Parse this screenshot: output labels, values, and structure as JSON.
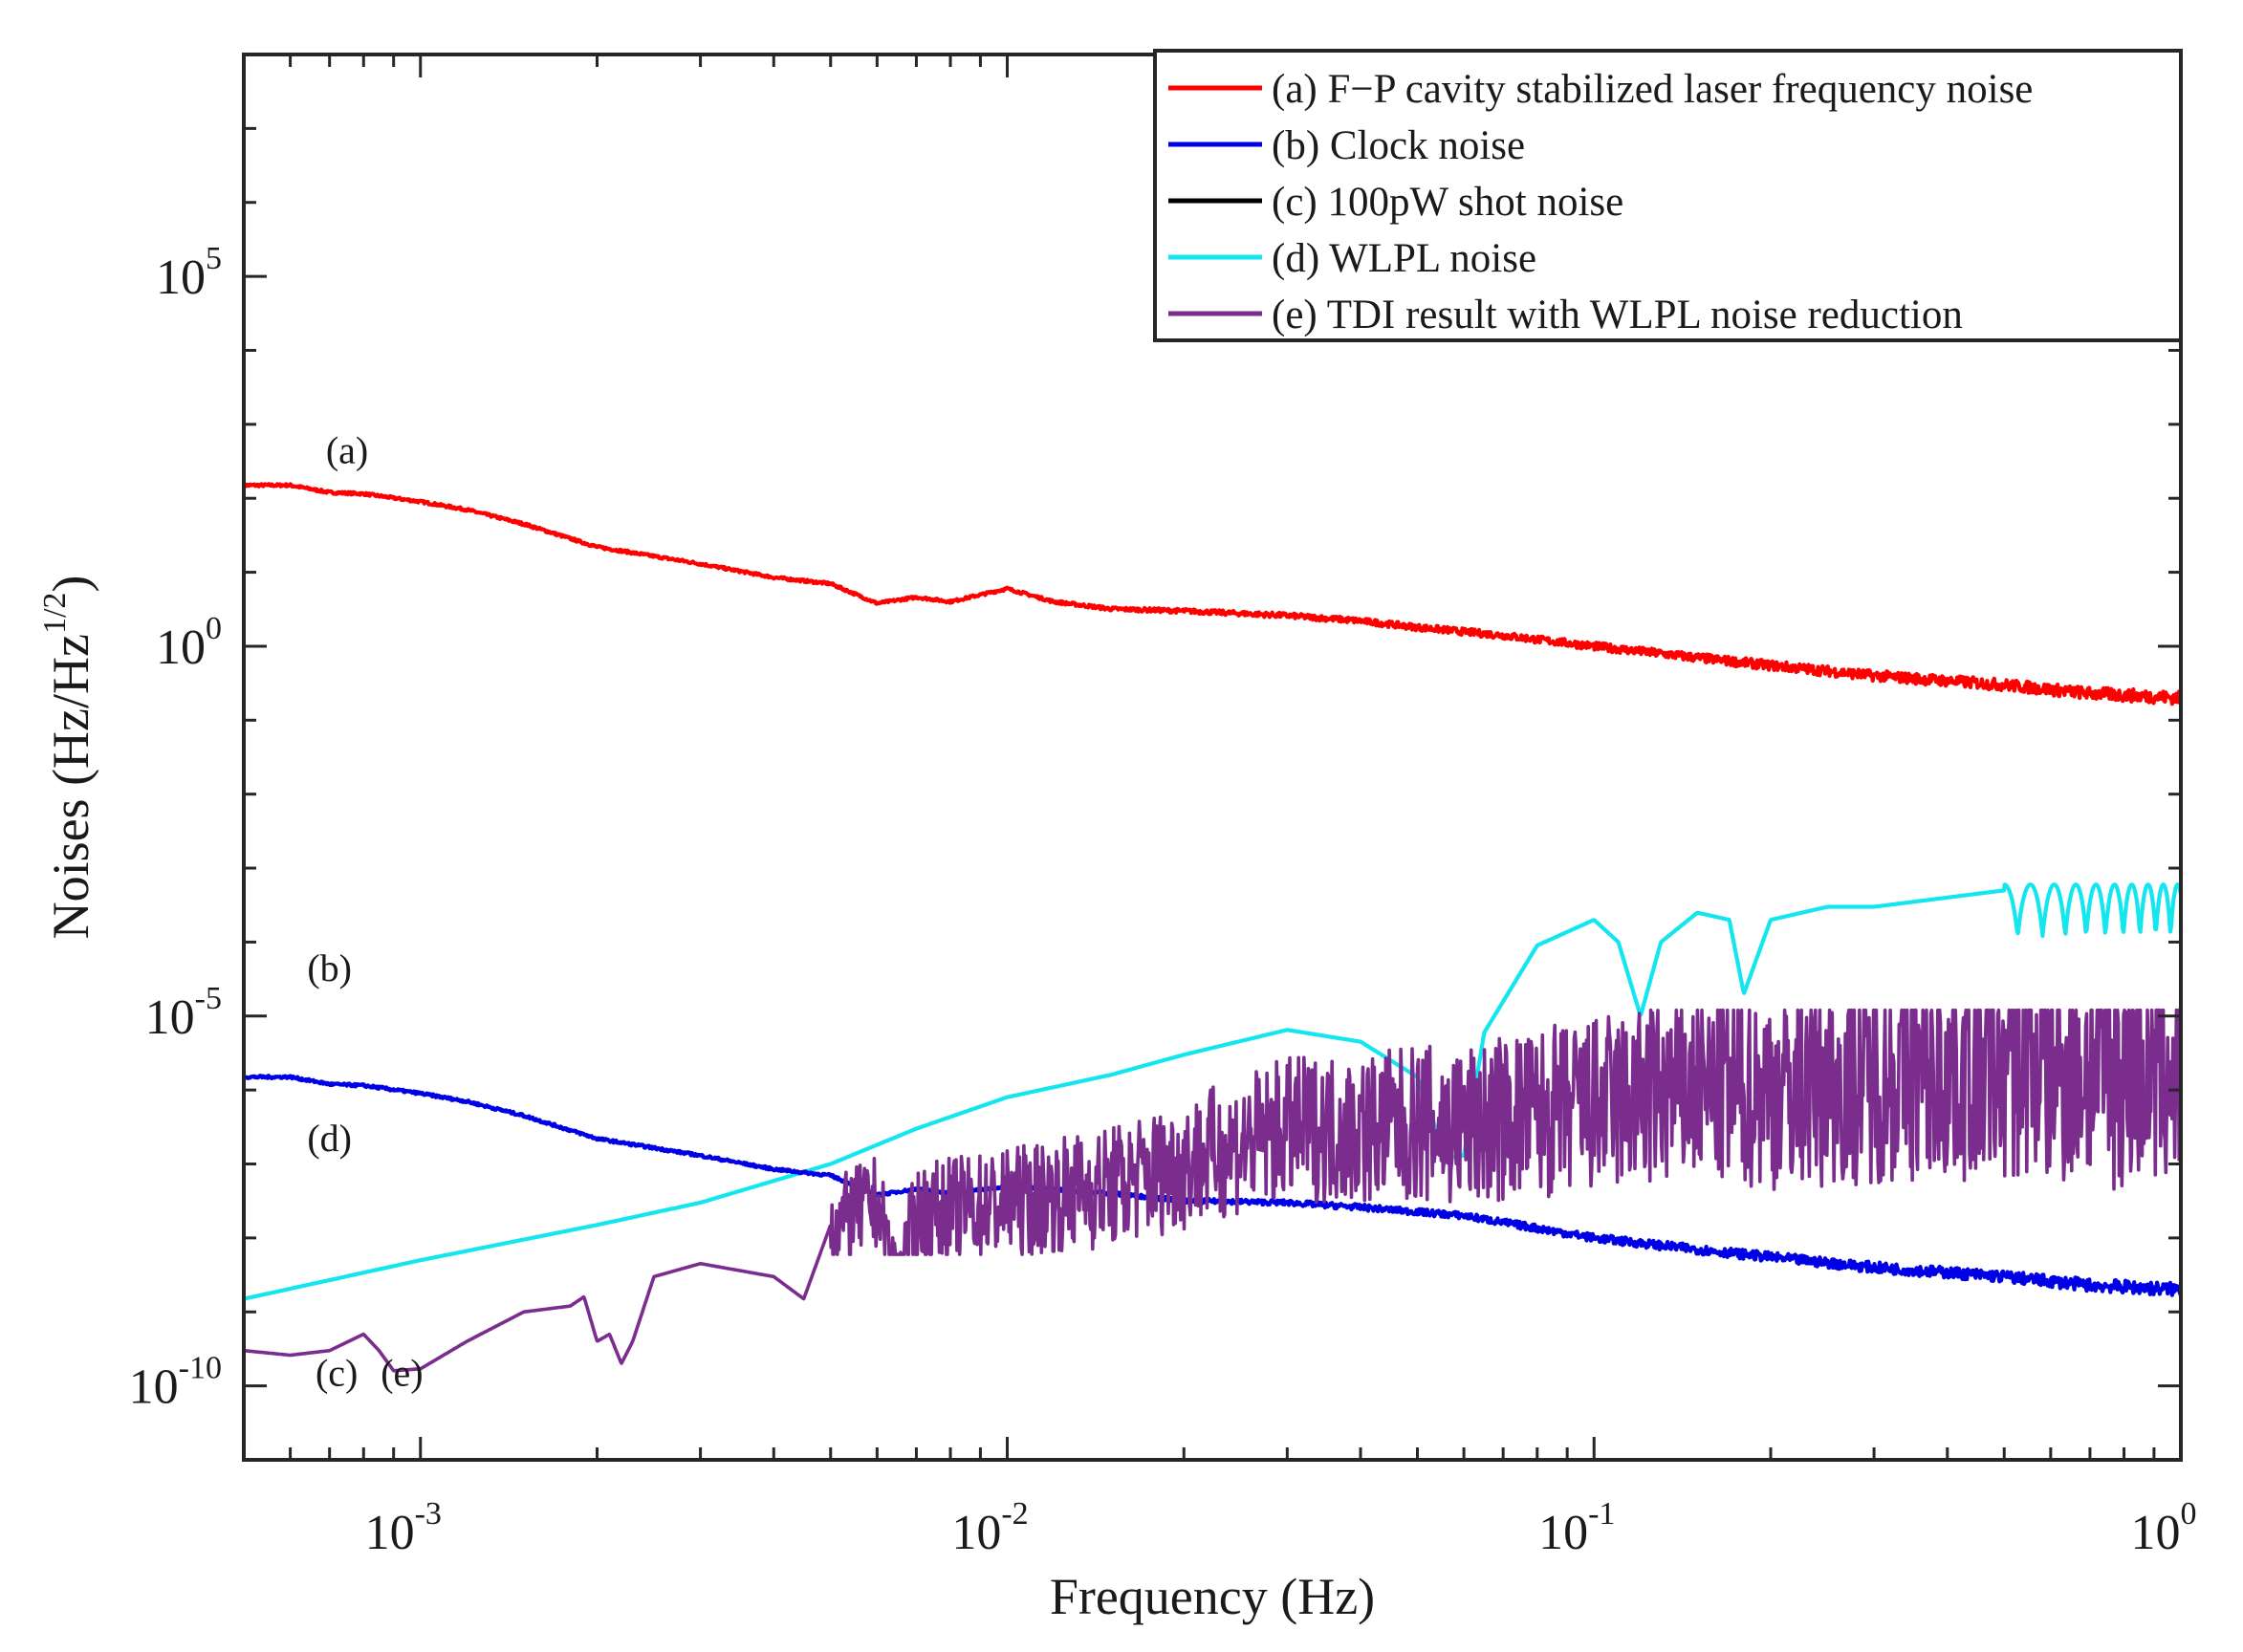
{
  "chart_data": {
    "type": "line",
    "xscale": "log",
    "yscale": "log",
    "xlim": [
      0.0005,
      1
    ],
    "ylim": [
      1e-11,
      100000000.0
    ],
    "xlabel": "Frequency (Hz)",
    "ylabel": {
      "text": "Noises (Hz/Hz",
      "exponent": "1/2",
      "close": ")"
    },
    "grid": false,
    "legend_position": "top-right",
    "x_ticks": [
      {
        "value": 0.001,
        "base": "10",
        "exp": "-3"
      },
      {
        "value": 0.01,
        "base": "10",
        "exp": "-2"
      },
      {
        "value": 0.1,
        "base": "10",
        "exp": "-1"
      },
      {
        "value": 1,
        "base": "10",
        "exp": "0"
      }
    ],
    "y_ticks": [
      {
        "value": 100000.0,
        "base": "10",
        "exp": "5"
      },
      {
        "value": 1,
        "base": "10",
        "exp": "0"
      },
      {
        "value": 1e-05,
        "base": "10",
        "exp": "-5"
      },
      {
        "value": 1e-10,
        "base": "10",
        "exp": "-10"
      }
    ],
    "series": [
      {
        "id": "a",
        "name": "(a) F−P cavity stabilized laser frequency noise",
        "color": "#ff0000",
        "x": [
          0.0005,
          0.0006,
          0.0007,
          0.0008,
          0.001,
          0.0012,
          0.0015,
          0.002,
          0.003,
          0.004,
          0.005,
          0.006,
          0.007,
          0.008,
          0.01,
          0.012,
          0.015,
          0.02,
          0.03,
          0.04,
          0.05,
          0.07,
          0.1,
          0.15,
          0.2,
          0.3,
          0.5,
          0.7,
          1.0
        ],
        "y": [
          150,
          150,
          120,
          115,
          90,
          70,
          45,
          22,
          13,
          8.5,
          7,
          3.8,
          4.6,
          4.0,
          6.0,
          4.0,
          3.2,
          3.0,
          2.6,
          2.2,
          1.8,
          1.4,
          1.0,
          0.7,
          0.55,
          0.4,
          0.3,
          0.23,
          0.2
        ],
        "jitter": 0.12
      },
      {
        "id": "b",
        "name": "(b) Clock noise",
        "color": "#0000e6",
        "x": [
          0.0005,
          0.0006,
          0.0007,
          0.0008,
          0.001,
          0.0012,
          0.0015,
          0.002,
          0.003,
          0.004,
          0.005,
          0.006,
          0.007,
          0.008,
          0.01,
          0.015,
          0.02,
          0.03,
          0.04,
          0.06,
          0.1,
          0.15,
          0.2,
          0.3,
          0.5,
          0.7,
          1.0
        ],
        "y": [
          1.5e-06,
          1.5e-06,
          1.2e-06,
          1.15e-06,
          9e-07,
          7e-07,
          4.5e-07,
          2.2e-07,
          1.3e-07,
          8.5e-08,
          7e-08,
          3.8e-08,
          4.6e-08,
          4e-08,
          5e-08,
          4e-08,
          3.2e-08,
          3e-08,
          2.6e-08,
          2e-08,
          1e-08,
          7e-09,
          5.5e-09,
          4e-09,
          3e-09,
          2.3e-09,
          2e-09
        ],
        "jitter": 0.12
      },
      {
        "id": "c",
        "name": "(c) 100pW shot noise",
        "color": "#000000",
        "x": [],
        "y": []
      },
      {
        "id": "d",
        "name": "(d) WLPL noise",
        "color": "#14e6f0",
        "x": [
          0.0005,
          0.001,
          0.002,
          0.003,
          0.005,
          0.007,
          0.01,
          0.015,
          0.02,
          0.03,
          0.04,
          0.05,
          0.056,
          0.06,
          0.065,
          0.08,
          0.1,
          0.11,
          0.12,
          0.13,
          0.15,
          0.17,
          0.18,
          0.2,
          0.25,
          0.3,
          0.4,
          0.5,
          0.7,
          0.9,
          1.0
        ],
        "y": [
          1.5e-09,
          5e-09,
          1.5e-08,
          3e-08,
          1e-07,
          3e-07,
          8e-07,
          1.6e-06,
          3e-06,
          6.5e-06,
          4.5e-06,
          1.5e-06,
          1.2e-07,
          1.3e-07,
          6e-06,
          9e-05,
          0.0002,
          0.0001,
          1e-05,
          0.0001,
          0.00025,
          0.0002,
          2e-05,
          0.0002,
          0.0003,
          0.0003,
          0.0004,
          0.0005,
          0.0005,
          0.0005,
          0.0005
        ],
        "fringe_start": 0.5,
        "fringe_period": 1.0,
        "fringe_amp": [
          0.0003,
          0.0006
        ],
        "fringe_min": 1e-05
      },
      {
        "id": "e",
        "name": "(e) TDI result with WLPL noise reduction",
        "color": "#7b2d8e",
        "x": [
          0.0005,
          0.0006,
          0.0007,
          0.0008,
          0.00085,
          0.0009,
          0.001,
          0.0012,
          0.0015,
          0.0018,
          0.0019,
          0.002,
          0.0021,
          0.0022,
          0.0023,
          0.0025,
          0.003,
          0.004,
          0.0045,
          0.005,
          0.006,
          0.0065,
          0.007,
          0.008,
          0.01,
          0.015,
          0.02,
          0.03,
          0.04,
          0.05,
          0.06,
          0.07,
          0.1,
          0.15,
          0.2,
          0.3,
          0.5,
          0.7,
          1.0
        ],
        "y": [
          3e-10,
          2.6e-10,
          3e-10,
          5e-10,
          3e-10,
          1.6e-10,
          1.7e-10,
          4e-10,
          1e-09,
          1.2e-09,
          1.6e-09,
          4e-10,
          5e-10,
          2e-10,
          4e-10,
          3e-09,
          4.5e-09,
          3e-09,
          1.5e-09,
          1.5e-08,
          3e-08,
          2e-09,
          2e-08,
          2.5e-08,
          3e-08,
          5e-08,
          1e-07,
          3e-07,
          3e-07,
          3.5e-07,
          3e-07,
          4e-07,
          6e-07,
          1e-06,
          1e-06,
          1.5e-06,
          2e-06,
          2e-06,
          2e-06
        ],
        "noise_from": 0.005,
        "noise_max": 1.2e-05,
        "noise_min": 6e-09
      }
    ],
    "annotations": [
      {
        "text": "(a)",
        "x": 0.00075,
        "y": 300
      },
      {
        "text": "(b)",
        "x": 0.0007,
        "y": 3e-05
      },
      {
        "text": "(d)",
        "x": 0.0007,
        "y": 1.5e-07
      },
      {
        "text": "(c)",
        "x": 0.00072,
        "y": 1e-10
      },
      {
        "text": "(e)",
        "x": 0.00093,
        "y": 1e-10
      }
    ]
  }
}
